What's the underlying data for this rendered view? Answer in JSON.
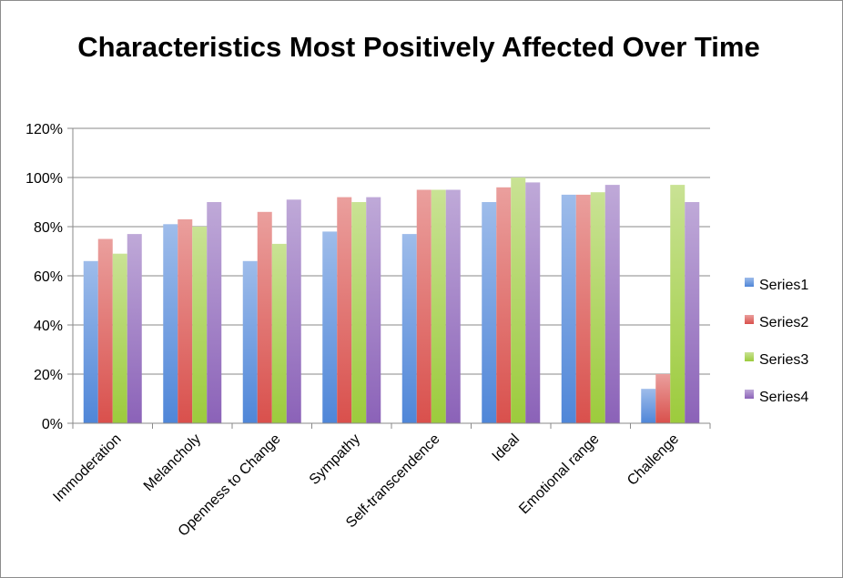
{
  "chart_data": {
    "type": "bar",
    "title": "Characteristics Most Positively Affected Over Time",
    "categories": [
      "Immoderation",
      "Melancholy",
      "Openness to Change",
      "Sympathy",
      "Self-transcendence",
      "Ideal",
      "Emotional range",
      "Challenge"
    ],
    "series": [
      {
        "name": "Series1",
        "color": "#4f86d8",
        "values": [
          66,
          81,
          66,
          78,
          77,
          90,
          93,
          14
        ]
      },
      {
        "name": "Series2",
        "color": "#d9504c",
        "values": [
          75,
          83,
          86,
          92,
          95,
          96,
          93,
          20
        ]
      },
      {
        "name": "Series3",
        "color": "#9ccb3c",
        "values": [
          69,
          80,
          73,
          90,
          95,
          100,
          94,
          97
        ]
      },
      {
        "name": "Series4",
        "color": "#8b62b8",
        "values": [
          77,
          90,
          91,
          92,
          95,
          98,
          97,
          90
        ]
      }
    ],
    "yticks": [
      "0%",
      "20%",
      "40%",
      "60%",
      "80%",
      "100%",
      "120%"
    ],
    "ylim": [
      0,
      120
    ],
    "xlabel": "",
    "ylabel": "",
    "grid": true,
    "legend_position": "right"
  }
}
